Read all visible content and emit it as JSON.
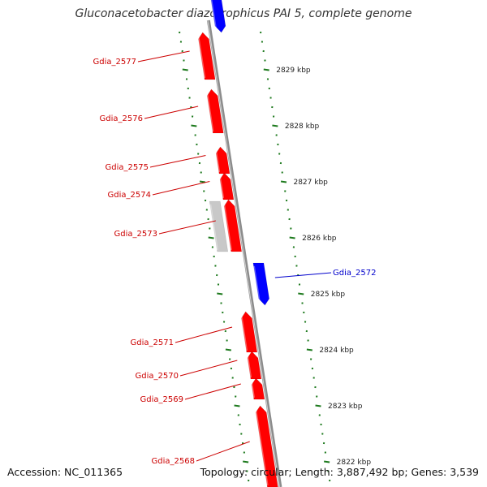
{
  "title": "Gluconacetobacter diazotrophicus PAI 5, complete genome",
  "footer": {
    "accession": "Accession: NC_011365",
    "summary": "Topology: circular; Length: 3,887,492 bp; Genes: 3,539"
  },
  "colors": {
    "forward_gene": "#ff0000",
    "reverse_gene": "#0000ff",
    "pseudo_gene": "#c8c8c8",
    "tick": "#1e7a1e",
    "backbone": "#8c8c8c",
    "label_forward": "#cc0000",
    "label_reverse": "#0000cc"
  },
  "ticks": [
    "2829 kbp",
    "2828 kbp",
    "2827 kbp",
    "2826 kbp",
    "2825 kbp",
    "2824 kbp",
    "2823 kbp",
    "2822 kbp"
  ],
  "genes": [
    {
      "name": "",
      "strand": "reverse"
    },
    {
      "name": "Gdia_2577",
      "strand": "forward"
    },
    {
      "name": "Gdia_2576",
      "strand": "forward"
    },
    {
      "name": "Gdia_2575",
      "strand": "forward"
    },
    {
      "name": "Gdia_2574",
      "strand": "forward"
    },
    {
      "name": "Gdia_2573",
      "strand": "forward"
    },
    {
      "name": "",
      "strand": "pseudo"
    },
    {
      "name": "Gdia_2572",
      "strand": "reverse"
    },
    {
      "name": "Gdia_2571",
      "strand": "forward"
    },
    {
      "name": "Gdia_2570",
      "strand": "forward"
    },
    {
      "name": "Gdia_2569",
      "strand": "forward"
    },
    {
      "name": "Gdia_2568",
      "strand": "forward"
    }
  ]
}
